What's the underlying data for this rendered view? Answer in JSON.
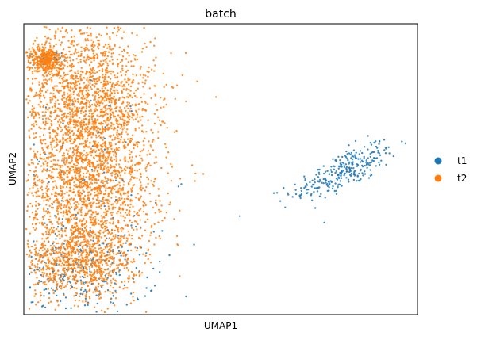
{
  "chart_data": {
    "type": "scatter",
    "title": "batch",
    "xlabel": "UMAP1",
    "ylabel": "UMAP2",
    "xlim": [
      -6,
      16
    ],
    "ylim": [
      -6,
      12
    ],
    "grid": false,
    "show_ticks": false,
    "legend_position": "right",
    "series": [
      {
        "name": "t1",
        "color": "#1f77b4",
        "point_count": 700,
        "regions": [
          {
            "cx": 11.9,
            "cy": 2.9,
            "sx": 1.6,
            "sy": 0.55,
            "weight": 0.42,
            "rotate": 28
          },
          {
            "cx": -2.8,
            "cy": -3.4,
            "sx": 2.1,
            "sy": 1.3,
            "weight": 0.38
          },
          {
            "cx": -2.6,
            "cy": 2.5,
            "sx": 1.8,
            "sy": 3.0,
            "weight": 0.14
          },
          {
            "cx": -4.7,
            "cy": 9.7,
            "sx": 0.4,
            "sy": 0.3,
            "weight": 0.06
          }
        ]
      },
      {
        "name": "t2",
        "color": "#ff7f0e",
        "point_count": 4600,
        "regions": [
          {
            "cx": -2.4,
            "cy": 7.4,
            "sx": 1.9,
            "sy": 2.4,
            "weight": 0.34
          },
          {
            "cx": -2.5,
            "cy": 1.8,
            "sx": 2.0,
            "sy": 2.6,
            "weight": 0.4
          },
          {
            "cx": -2.9,
            "cy": -2.6,
            "sx": 1.6,
            "sy": 1.3,
            "weight": 0.18
          },
          {
            "cx": -4.8,
            "cy": 9.8,
            "sx": 0.5,
            "sy": 0.4,
            "weight": 0.08
          }
        ]
      }
    ]
  }
}
